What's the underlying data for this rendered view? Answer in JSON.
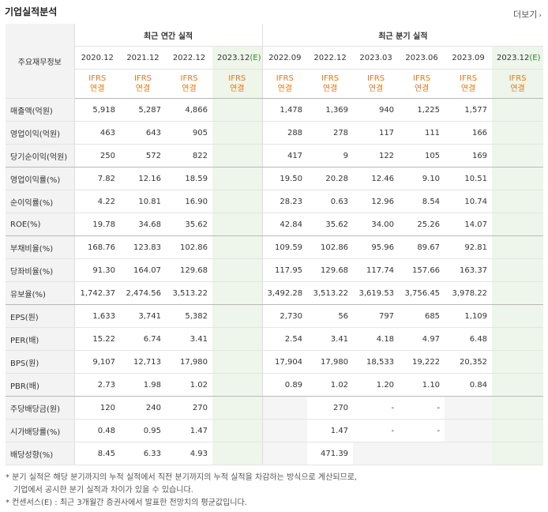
{
  "title": "기업실적분석",
  "more_label": "더보기",
  "header": {
    "label_head": "주요재무정보",
    "annual_group": "최근 연간 실적",
    "quarter_group": "최근 분기 실적",
    "annual_periods": [
      "2020.12",
      "2021.12",
      "2022.12",
      "2023.12"
    ],
    "annual_est_suffix": "(E)",
    "quarter_periods": [
      "2022.09",
      "2022.12",
      "2023.03",
      "2023.06",
      "2023.09",
      "2023.12"
    ],
    "quarter_est_suffix": "(E)",
    "basis_line1": "IFRS",
    "basis_line2": "연결"
  },
  "rows": [
    {
      "label": "매출액(억원)",
      "annual": [
        "5,918",
        "5,287",
        "4,866",
        ""
      ],
      "quarter": [
        "1,478",
        "1,369",
        "940",
        "1,225",
        "1,577",
        ""
      ]
    },
    {
      "label": "영업이익(억원)",
      "annual": [
        "463",
        "643",
        "905",
        ""
      ],
      "quarter": [
        "288",
        "278",
        "117",
        "111",
        "166",
        ""
      ]
    },
    {
      "label": "당기순이익(억원)",
      "annual": [
        "250",
        "572",
        "822",
        ""
      ],
      "quarter": [
        "417",
        "9",
        "122",
        "105",
        "169",
        ""
      ]
    },
    {
      "label": "영업이익률(%)",
      "annual": [
        "7.82",
        "12.16",
        "18.59",
        ""
      ],
      "quarter": [
        "19.50",
        "20.28",
        "12.46",
        "9.10",
        "10.51",
        ""
      ]
    },
    {
      "label": "순이익률(%)",
      "annual": [
        "4.22",
        "10.81",
        "16.90",
        ""
      ],
      "quarter": [
        "28.23",
        "0.63",
        "12.96",
        "8.54",
        "10.74",
        ""
      ]
    },
    {
      "label": "ROE(%)",
      "annual": [
        "19.78",
        "34.68",
        "35.62",
        ""
      ],
      "quarter": [
        "42.84",
        "35.62",
        "34.00",
        "25.26",
        "14.07",
        ""
      ]
    },
    {
      "label": "부채비율(%)",
      "annual": [
        "168.76",
        "123.83",
        "102.86",
        ""
      ],
      "quarter": [
        "109.59",
        "102.86",
        "95.96",
        "89.67",
        "92.81",
        ""
      ]
    },
    {
      "label": "당좌비율(%)",
      "annual": [
        "91.30",
        "164.07",
        "129.68",
        ""
      ],
      "quarter": [
        "117.95",
        "129.68",
        "117.74",
        "157.66",
        "163.37",
        ""
      ]
    },
    {
      "label": "유보율(%)",
      "annual": [
        "1,742.37",
        "2,474.56",
        "3,513.22",
        ""
      ],
      "quarter": [
        "3,492.28",
        "3,513.22",
        "3,619.53",
        "3,756.45",
        "3,978.22",
        ""
      ]
    },
    {
      "label": "EPS(원)",
      "annual": [
        "1,633",
        "3,741",
        "5,382",
        ""
      ],
      "quarter": [
        "2,730",
        "56",
        "797",
        "685",
        "1,109",
        ""
      ]
    },
    {
      "label": "PER(배)",
      "annual": [
        "15.22",
        "6.74",
        "3.41",
        ""
      ],
      "quarter": [
        "2.54",
        "3.41",
        "4.18",
        "4.97",
        "6.48",
        ""
      ]
    },
    {
      "label": "BPS(원)",
      "annual": [
        "9,107",
        "12,713",
        "17,980",
        ""
      ],
      "quarter": [
        "17,904",
        "17,980",
        "18,533",
        "19,222",
        "20,352",
        ""
      ]
    },
    {
      "label": "PBR(배)",
      "annual": [
        "2.73",
        "1.98",
        "1.02",
        ""
      ],
      "quarter": [
        "0.89",
        "1.02",
        "1.20",
        "1.10",
        "0.84",
        ""
      ]
    },
    {
      "label": "주당배당금(원)",
      "annual": [
        "120",
        "240",
        "270",
        ""
      ],
      "quarter": [
        "",
        "270",
        "-",
        "-",
        "",
        ""
      ]
    },
    {
      "label": "시가배당률(%)",
      "annual": [
        "0.48",
        "0.95",
        "1.47",
        ""
      ],
      "quarter": [
        "",
        "1.47",
        "-",
        "-",
        "",
        ""
      ]
    },
    {
      "label": "배당성향(%)",
      "annual": [
        "8.45",
        "6.33",
        "4.93",
        ""
      ],
      "quarter": [
        "",
        "471.39",
        "",
        "",
        "",
        ""
      ]
    }
  ],
  "notes": [
    "* 분기 실적은 해당 분기까지의 누적 실적에서 직전 분기까지의 누적 실적을 차감하는 방식으로 계산되므로,",
    "  기업에서 공시한 분기 실적과 차이가 있을 수 있습니다.",
    "* 컨센서스(E) : 최근 3개월간 증권사에서 발표한 전망치의 평균값입니다."
  ],
  "colors": {
    "ifrs": "#e8770a",
    "estimate_bg": "#eef5ea",
    "estimate_label": "#2e8b2e"
  }
}
